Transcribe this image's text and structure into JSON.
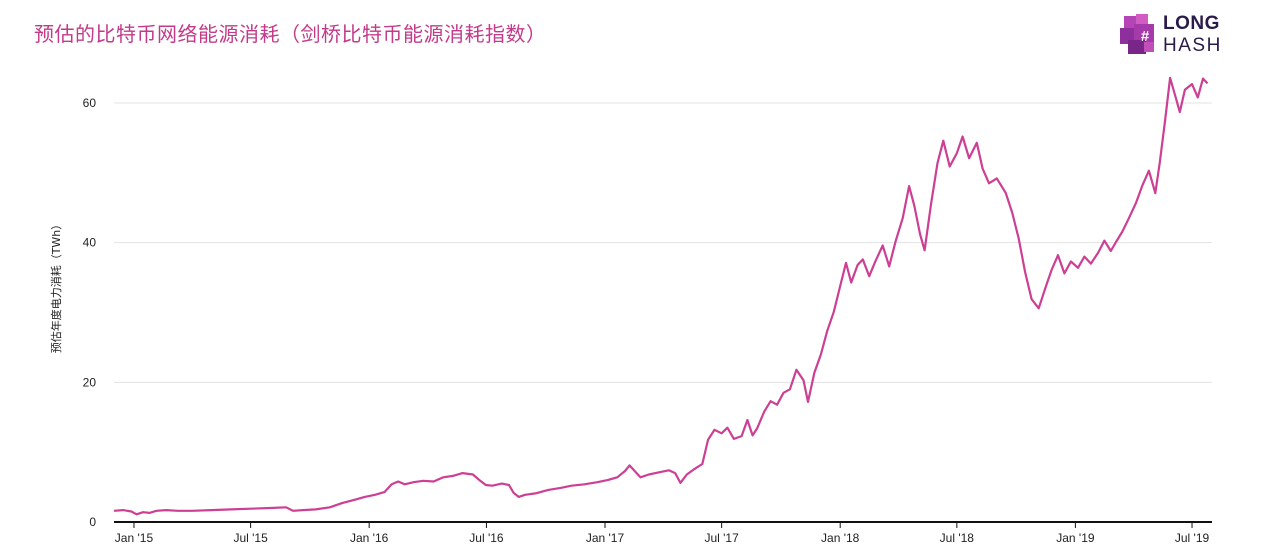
{
  "title": "预估的比特币网络能源消耗（剑桥比特币能源消耗指数）",
  "logo": {
    "line1": "LONG",
    "line2": "HASH"
  },
  "colors": {
    "line": "#cc3f93",
    "title": "#c33a8a",
    "logo_dark": "#2b1b4a",
    "logo_purple": "#9a3aa8"
  },
  "chart_data": {
    "type": "line",
    "title": "预估的比特币网络能源消耗（剑桥比特币能源消耗指数）",
    "xlabel": "",
    "ylabel": "预估年度电力消耗（TWh）",
    "ylim": [
      0,
      60
    ],
    "yticks": [
      0,
      20,
      40,
      60
    ],
    "xlim": [
      "2014-12-01",
      "2019-08-01"
    ],
    "xticks": [
      {
        "date": "2015-01-01",
        "label": "Jan '15"
      },
      {
        "date": "2015-07-01",
        "label": "Jul '15"
      },
      {
        "date": "2016-01-01",
        "label": "Jan '16"
      },
      {
        "date": "2016-07-01",
        "label": "Jul '16"
      },
      {
        "date": "2017-01-01",
        "label": "Jan '17"
      },
      {
        "date": "2017-07-01",
        "label": "Jul '17"
      },
      {
        "date": "2018-01-01",
        "label": "Jan '18"
      },
      {
        "date": "2018-07-01",
        "label": "Jul '18"
      },
      {
        "date": "2019-01-01",
        "label": "Jan '19"
      },
      {
        "date": "2019-07-01",
        "label": "Jul '19"
      }
    ],
    "grid": true,
    "series": [
      {
        "points": [
          [
            "2014-12-01",
            1.6
          ],
          [
            "2014-12-15",
            1.7
          ],
          [
            "2014-12-28",
            1.5
          ],
          [
            "2015-01-05",
            1.1
          ],
          [
            "2015-01-15",
            1.4
          ],
          [
            "2015-01-25",
            1.3
          ],
          [
            "2015-02-05",
            1.6
          ],
          [
            "2015-02-20",
            1.7
          ],
          [
            "2015-03-10",
            1.6
          ],
          [
            "2015-04-01",
            1.6
          ],
          [
            "2015-05-01",
            1.7
          ],
          [
            "2015-06-01",
            1.8
          ],
          [
            "2015-07-01",
            1.9
          ],
          [
            "2015-08-01",
            2.0
          ],
          [
            "2015-08-25",
            2.1
          ],
          [
            "2015-09-05",
            1.6
          ],
          [
            "2015-09-20",
            1.7
          ],
          [
            "2015-10-10",
            1.8
          ],
          [
            "2015-11-01",
            2.1
          ],
          [
            "2015-11-20",
            2.7
          ],
          [
            "2015-12-10",
            3.2
          ],
          [
            "2015-12-25",
            3.6
          ],
          [
            "2016-01-10",
            3.9
          ],
          [
            "2016-01-25",
            4.3
          ],
          [
            "2016-02-05",
            5.4
          ],
          [
            "2016-02-15",
            5.8
          ],
          [
            "2016-02-25",
            5.4
          ],
          [
            "2016-03-10",
            5.7
          ],
          [
            "2016-03-25",
            5.9
          ],
          [
            "2016-04-10",
            5.8
          ],
          [
            "2016-04-25",
            6.4
          ],
          [
            "2016-05-10",
            6.6
          ],
          [
            "2016-05-25",
            7.0
          ],
          [
            "2016-06-10",
            6.8
          ],
          [
            "2016-06-20",
            6.0
          ],
          [
            "2016-06-30",
            5.3
          ],
          [
            "2016-07-10",
            5.2
          ],
          [
            "2016-07-25",
            5.5
          ],
          [
            "2016-08-05",
            5.3
          ],
          [
            "2016-08-12",
            4.2
          ],
          [
            "2016-08-20",
            3.6
          ],
          [
            "2016-08-30",
            3.9
          ],
          [
            "2016-09-15",
            4.1
          ],
          [
            "2016-10-05",
            4.6
          ],
          [
            "2016-10-25",
            4.9
          ],
          [
            "2016-11-10",
            5.2
          ],
          [
            "2016-11-30",
            5.4
          ],
          [
            "2016-12-20",
            5.7
          ],
          [
            "2017-01-05",
            6.0
          ],
          [
            "2017-01-20",
            6.4
          ],
          [
            "2017-02-01",
            7.3
          ],
          [
            "2017-02-08",
            8.1
          ],
          [
            "2017-02-15",
            7.4
          ],
          [
            "2017-02-25",
            6.4
          ],
          [
            "2017-03-10",
            6.8
          ],
          [
            "2017-03-25",
            7.1
          ],
          [
            "2017-04-10",
            7.4
          ],
          [
            "2017-04-20",
            7.0
          ],
          [
            "2017-04-28",
            5.6
          ],
          [
            "2017-05-08",
            6.8
          ],
          [
            "2017-05-20",
            7.6
          ],
          [
            "2017-06-01",
            8.3
          ],
          [
            "2017-06-10",
            11.8
          ],
          [
            "2017-06-20",
            13.2
          ],
          [
            "2017-07-01",
            12.7
          ],
          [
            "2017-07-10",
            13.5
          ],
          [
            "2017-07-20",
            11.9
          ],
          [
            "2017-08-01",
            12.3
          ],
          [
            "2017-08-10",
            14.6
          ],
          [
            "2017-08-18",
            12.4
          ],
          [
            "2017-08-25",
            13.4
          ],
          [
            "2017-09-05",
            15.8
          ],
          [
            "2017-09-15",
            17.3
          ],
          [
            "2017-09-25",
            16.8
          ],
          [
            "2017-10-05",
            18.5
          ],
          [
            "2017-10-15",
            19.0
          ],
          [
            "2017-10-25",
            21.8
          ],
          [
            "2017-11-05",
            20.3
          ],
          [
            "2017-11-12",
            17.2
          ],
          [
            "2017-11-22",
            21.4
          ],
          [
            "2017-12-02",
            24.0
          ],
          [
            "2017-12-12",
            27.4
          ],
          [
            "2017-12-22",
            30.1
          ],
          [
            "2018-01-01",
            33.8
          ],
          [
            "2018-01-10",
            37.1
          ],
          [
            "2018-01-18",
            34.3
          ],
          [
            "2018-01-28",
            36.8
          ],
          [
            "2018-02-05",
            37.6
          ],
          [
            "2018-02-15",
            35.2
          ],
          [
            "2018-02-25",
            37.4
          ],
          [
            "2018-03-08",
            39.6
          ],
          [
            "2018-03-18",
            36.6
          ],
          [
            "2018-03-28",
            40.2
          ],
          [
            "2018-04-08",
            43.5
          ],
          [
            "2018-04-18",
            48.1
          ],
          [
            "2018-04-26",
            45.3
          ],
          [
            "2018-05-05",
            41.2
          ],
          [
            "2018-05-12",
            38.9
          ],
          [
            "2018-05-22",
            45.6
          ],
          [
            "2018-06-01",
            51.4
          ],
          [
            "2018-06-10",
            54.6
          ],
          [
            "2018-06-20",
            50.9
          ],
          [
            "2018-07-01",
            52.8
          ],
          [
            "2018-07-10",
            55.2
          ],
          [
            "2018-07-20",
            52.1
          ],
          [
            "2018-08-01",
            54.3
          ],
          [
            "2018-08-10",
            50.6
          ],
          [
            "2018-08-20",
            48.5
          ],
          [
            "2018-09-01",
            49.2
          ],
          [
            "2018-09-15",
            47.1
          ],
          [
            "2018-09-25",
            44.3
          ],
          [
            "2018-10-05",
            40.6
          ],
          [
            "2018-10-15",
            35.8
          ],
          [
            "2018-10-25",
            31.9
          ],
          [
            "2018-11-05",
            30.6
          ],
          [
            "2018-11-15",
            33.4
          ],
          [
            "2018-11-25",
            36.1
          ],
          [
            "2018-12-05",
            38.2
          ],
          [
            "2018-12-15",
            35.6
          ],
          [
            "2018-12-25",
            37.3
          ],
          [
            "2019-01-05",
            36.4
          ],
          [
            "2019-01-15",
            38.0
          ],
          [
            "2019-01-25",
            37.0
          ],
          [
            "2019-02-05",
            38.5
          ],
          [
            "2019-02-15",
            40.3
          ],
          [
            "2019-02-25",
            38.8
          ],
          [
            "2019-03-05",
            40.1
          ],
          [
            "2019-03-15",
            41.6
          ],
          [
            "2019-03-25",
            43.5
          ],
          [
            "2019-04-05",
            45.7
          ],
          [
            "2019-04-15",
            48.2
          ],
          [
            "2019-04-25",
            50.3
          ],
          [
            "2019-05-05",
            47.1
          ],
          [
            "2019-05-12",
            51.5
          ],
          [
            "2019-05-20",
            57.4
          ],
          [
            "2019-05-28",
            63.6
          ],
          [
            "2019-06-05",
            61.0
          ],
          [
            "2019-06-12",
            58.7
          ],
          [
            "2019-06-20",
            61.9
          ],
          [
            "2019-07-01",
            62.7
          ],
          [
            "2019-07-10",
            60.8
          ],
          [
            "2019-07-18",
            63.5
          ],
          [
            "2019-07-25",
            62.8
          ]
        ]
      }
    ]
  }
}
